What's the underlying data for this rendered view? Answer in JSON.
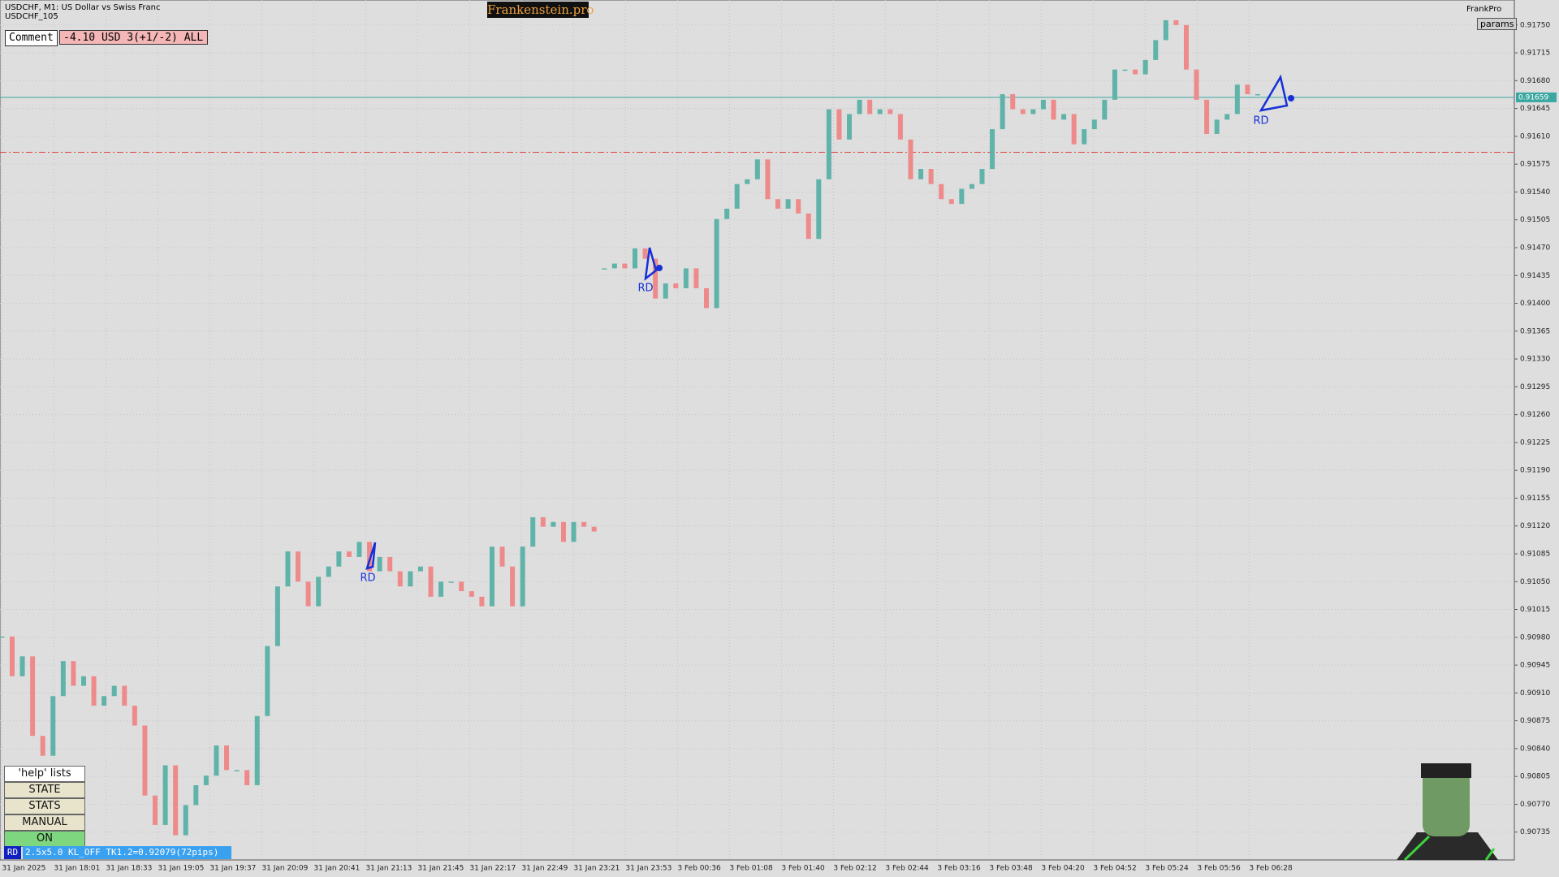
{
  "ui": {
    "symbol_title": "USDCHF, M1:  US Dollar vs Swiss Franc",
    "symbol_sub": "USDCHF_105",
    "brand": "Frankenstein.pro",
    "account": "FrankPro",
    "params_button": "params",
    "comment_label": "Comment",
    "comment_value": "-4.10 USD 3(+1/-2) ALL",
    "buttons": [
      "'help' lists cmds",
      "STATE",
      "STATS",
      "MANUAL",
      "ON"
    ],
    "status_tag": "RD",
    "status_text": "2.5x5.0 KL_OFF TK1.2=0.92079(72pips)",
    "pattern_labels": [
      "RD",
      "RD",
      "RD"
    ]
  },
  "chart_data": {
    "type": "candlestick",
    "up_color": "#5fb3a8",
    "down_color": "#ee8a8a",
    "grid": true,
    "ylim": [
      0.907,
      0.91779
    ],
    "yticks": [
      0.90735,
      {
        "value": 0.9077,
        "label": "0.90770"
      },
      0.90805,
      {
        "value": 0.9084,
        "label": "0.90840"
      },
      0.90875,
      {
        "value": 0.9091,
        "label": "0.90910"
      },
      0.90945,
      {
        "value": 0.9098,
        "label": "0.90980"
      },
      0.91015,
      {
        "value": 0.9105,
        "label": "0.91050"
      },
      0.91085,
      {
        "value": 0.9112,
        "label": "0.91120"
      },
      0.91155,
      {
        "value": 0.9119,
        "label": "0.91190"
      },
      0.91225,
      {
        "value": 0.9126,
        "label": "0.91260"
      },
      0.91295,
      {
        "value": 0.9133,
        "label": "0.91330"
      },
      0.91365,
      {
        "value": 0.914,
        "label": "0.91400"
      },
      0.91435,
      {
        "value": 0.9147,
        "label": "0.91470"
      },
      0.91505,
      {
        "value": 0.9154,
        "label": "0.91540"
      },
      0.91575,
      {
        "value": 0.9161,
        "label": "0.91610"
      },
      0.91645,
      {
        "value": 0.9168,
        "label": "0.91680"
      },
      0.91715,
      {
        "value": 0.9175,
        "label": "0.91750"
      }
    ],
    "x_labels": [
      "31 Jan 2025",
      "31 Jan 18:01",
      "31 Jan 18:33",
      "31 Jan 19:05",
      "31 Jan 19:37",
      "31 Jan 20:09",
      "31 Jan 20:41",
      "31 Jan 21:13",
      "31 Jan 21:45",
      "31 Jan 22:17",
      "31 Jan 22:49",
      "31 Jan 23:21",
      "31 Jan 23:53",
      "3 Feb 00:36",
      "3 Feb 01:08",
      "3 Feb 01:40",
      "3 Feb 02:12",
      "3 Feb 02:44",
      "3 Feb 03:16",
      "3 Feb 03:48",
      "3 Feb 04:20",
      "3 Feb 04:52",
      "3 Feb 05:24",
      "3 Feb 05:56",
      "3 Feb 06:28"
    ],
    "series": [
      {
        "values": [
          0.90981,
          0.90931,
          0.90956,
          0.90856,
          0.90831,
          0.90906,
          0.9095,
          0.90919,
          0.90931,
          0.90894,
          0.90906,
          0.90919,
          0.90894,
          0.90869,
          0.90781,
          0.90744,
          0.90819,
          0.90731,
          0.90769,
          0.90794,
          0.90806,
          0.90844,
          0.90813,
          0.90813,
          0.90794,
          0.90881,
          0.90969,
          0.91044,
          0.91088,
          0.9105,
          0.91019,
          0.91056,
          0.91069,
          0.91088,
          0.91081,
          0.911,
          0.91063,
          0.91081,
          0.91063,
          0.91044,
          0.91063,
          0.91069,
          0.91031,
          0.9105,
          0.9105,
          0.91038,
          0.91031,
          0.91019,
          0.91094,
          0.91069,
          0.91019,
          0.91094,
          0.91131,
          0.91119,
          0.91125,
          0.911,
          0.91125,
          0.91119,
          0.91113
        ]
      },
      {
        "values": [
          0.91444,
          0.9145,
          0.91444,
          0.91469,
          0.91456,
          0.91406,
          0.91425,
          0.91419,
          0.91444,
          0.91419,
          0.91394,
          0.91506,
          0.91519,
          0.9155,
          0.91556,
          0.91581,
          0.91531,
          0.91519,
          0.91531,
          0.91513,
          0.91481,
          0.91556,
          0.91644,
          0.91606,
          0.91638,
          0.91656,
          0.91638,
          0.91644,
          0.91638,
          0.91606,
          0.91556,
          0.91569,
          0.9155,
          0.91531,
          0.91525,
          0.91544,
          0.9155,
          0.91569,
          0.91619,
          0.91663,
          0.91644,
          0.91638,
          0.91644,
          0.91656,
          0.91631,
          0.91638,
          0.916,
          0.91619,
          0.91631,
          0.91656,
          0.91694,
          0.91694,
          0.91688,
          0.91706,
          0.91731,
          0.91756,
          0.9175,
          0.91694,
          0.91656,
          0.91613,
          0.91631,
          0.91638,
          0.91675,
          0.91663,
          0.91663
        ]
      }
    ],
    "hlines": [
      {
        "value": 0.91659,
        "label": "0.91659",
        "color": "#3aa8a0",
        "style": "solid"
      },
      {
        "value": 0.9159,
        "color": "#e0403a",
        "style": "dashdot"
      }
    ]
  }
}
